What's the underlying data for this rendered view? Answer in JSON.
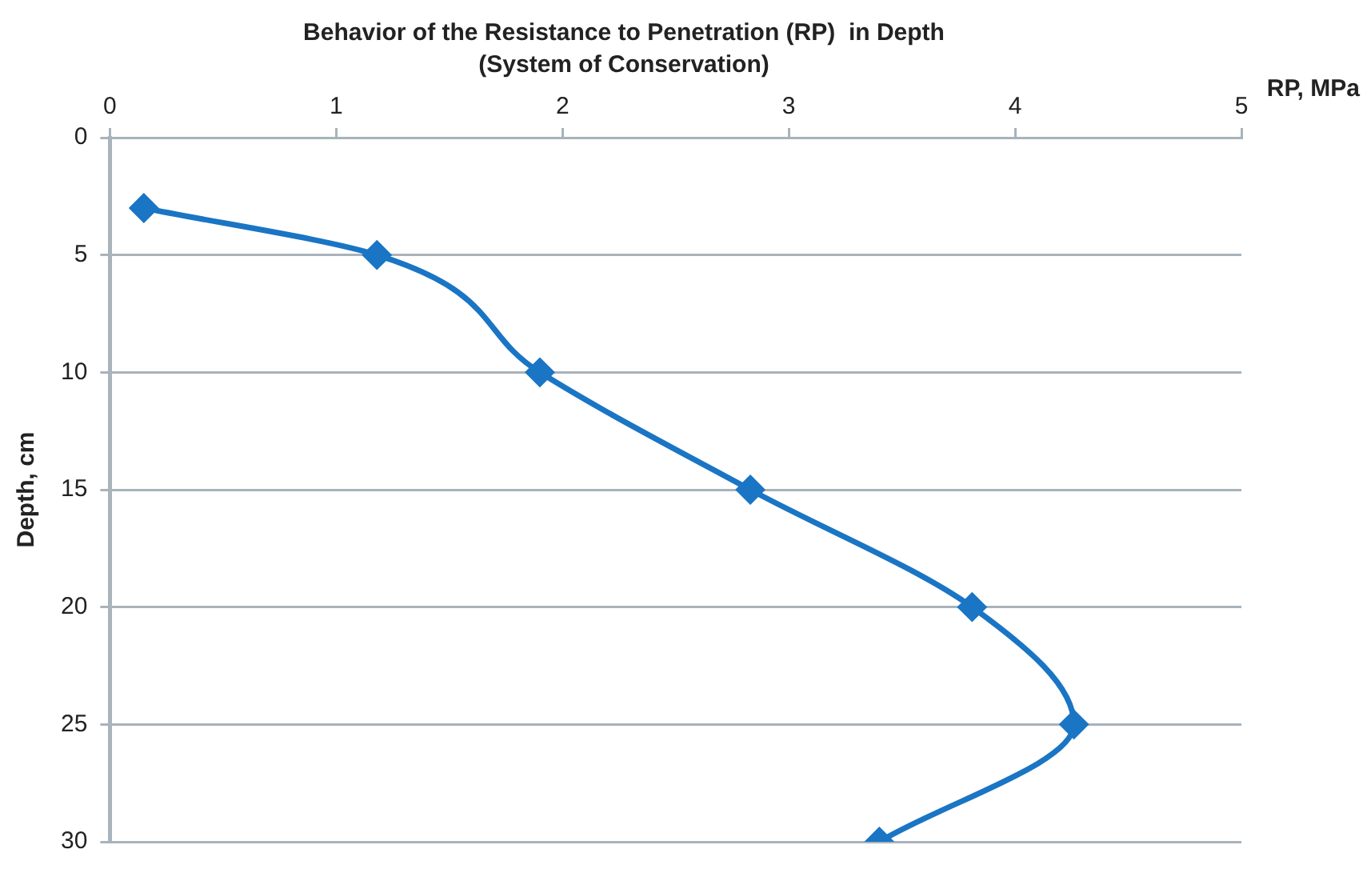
{
  "chart_data": {
    "type": "line",
    "title": "Behavior of the Resistance to Penetration (RP)  in Depth",
    "subtitle": "(System of Conservation)",
    "xlabel": "RP, MPa",
    "ylabel": "Depth, cm",
    "x": [
      0.15,
      1.18,
      1.9,
      2.83,
      3.81,
      4.26,
      3.4
    ],
    "series": [
      {
        "color": "#1a75c4",
        "values": [
          3,
          5,
          10,
          15,
          20,
          25,
          30
        ]
      }
    ],
    "xlim": [
      0,
      5
    ],
    "xticks": [
      0,
      1,
      2,
      3,
      4,
      5
    ],
    "ylim": [
      30,
      0
    ],
    "yticks": [
      0,
      5,
      10,
      15,
      20,
      25,
      30
    ],
    "grid": "y",
    "legend": false,
    "marker": "diamond",
    "line_style": "solid"
  }
}
